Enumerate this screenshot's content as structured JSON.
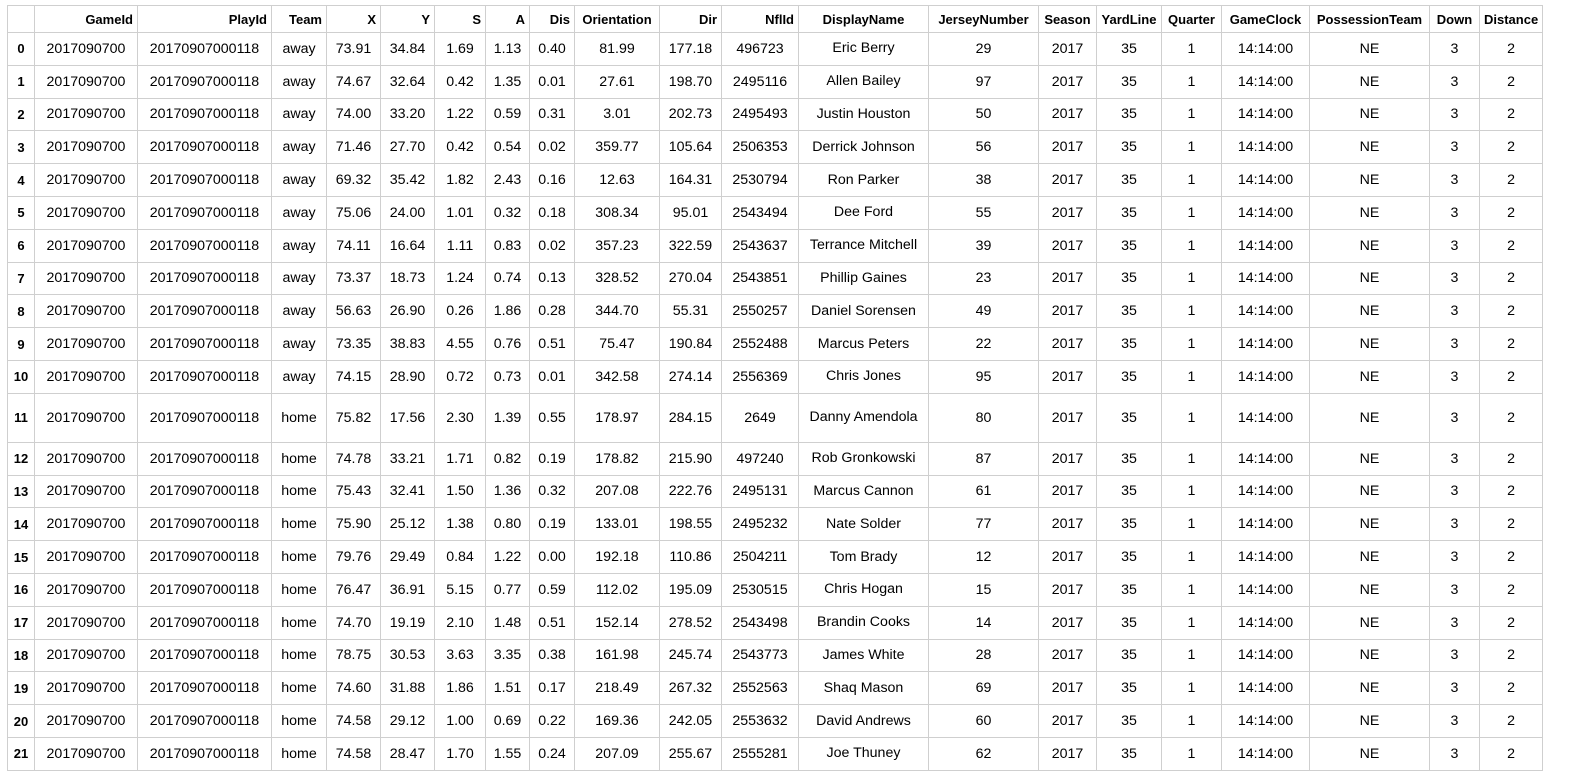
{
  "table": {
    "columns": [
      "",
      "GameId",
      "PlayId",
      "Team",
      "X",
      "Y",
      "S",
      "A",
      "Dis",
      "Orientation",
      "Dir",
      "NflId",
      "DisplayName",
      "JerseyNumber",
      "Season",
      "YardLine",
      "Quarter",
      "GameClock",
      "PossessionTeam",
      "Down",
      "Distance"
    ],
    "rows": [
      [
        "0",
        "2017090700",
        "20170907000118",
        "away",
        "73.91",
        "34.84",
        "1.69",
        "1.13",
        "0.40",
        "81.99",
        "177.18",
        "496723",
        "Eric Berry",
        "29",
        "2017",
        "35",
        "1",
        "14:14:00",
        "NE",
        "3",
        "2"
      ],
      [
        "1",
        "2017090700",
        "20170907000118",
        "away",
        "74.67",
        "32.64",
        "0.42",
        "1.35",
        "0.01",
        "27.61",
        "198.70",
        "2495116",
        "Allen Bailey",
        "97",
        "2017",
        "35",
        "1",
        "14:14:00",
        "NE",
        "3",
        "2"
      ],
      [
        "2",
        "2017090700",
        "20170907000118",
        "away",
        "74.00",
        "33.20",
        "1.22",
        "0.59",
        "0.31",
        "3.01",
        "202.73",
        "2495493",
        "Justin Houston",
        "50",
        "2017",
        "35",
        "1",
        "14:14:00",
        "NE",
        "3",
        "2"
      ],
      [
        "3",
        "2017090700",
        "20170907000118",
        "away",
        "71.46",
        "27.70",
        "0.42",
        "0.54",
        "0.02",
        "359.77",
        "105.64",
        "2506353",
        "Derrick Johnson",
        "56",
        "2017",
        "35",
        "1",
        "14:14:00",
        "NE",
        "3",
        "2"
      ],
      [
        "4",
        "2017090700",
        "20170907000118",
        "away",
        "69.32",
        "35.42",
        "1.82",
        "2.43",
        "0.16",
        "12.63",
        "164.31",
        "2530794",
        "Ron Parker",
        "38",
        "2017",
        "35",
        "1",
        "14:14:00",
        "NE",
        "3",
        "2"
      ],
      [
        "5",
        "2017090700",
        "20170907000118",
        "away",
        "75.06",
        "24.00",
        "1.01",
        "0.32",
        "0.18",
        "308.34",
        "95.01",
        "2543494",
        "Dee Ford",
        "55",
        "2017",
        "35",
        "1",
        "14:14:00",
        "NE",
        "3",
        "2"
      ],
      [
        "6",
        "2017090700",
        "20170907000118",
        "away",
        "74.11",
        "16.64",
        "1.11",
        "0.83",
        "0.02",
        "357.23",
        "322.59",
        "2543637",
        "Terrance Mitchell",
        "39",
        "2017",
        "35",
        "1",
        "14:14:00",
        "NE",
        "3",
        "2"
      ],
      [
        "7",
        "2017090700",
        "20170907000118",
        "away",
        "73.37",
        "18.73",
        "1.24",
        "0.74",
        "0.13",
        "328.52",
        "270.04",
        "2543851",
        "Phillip Gaines",
        "23",
        "2017",
        "35",
        "1",
        "14:14:00",
        "NE",
        "3",
        "2"
      ],
      [
        "8",
        "2017090700",
        "20170907000118",
        "away",
        "56.63",
        "26.90",
        "0.26",
        "1.86",
        "0.28",
        "344.70",
        "55.31",
        "2550257",
        "Daniel Sorensen",
        "49",
        "2017",
        "35",
        "1",
        "14:14:00",
        "NE",
        "3",
        "2"
      ],
      [
        "9",
        "2017090700",
        "20170907000118",
        "away",
        "73.35",
        "38.83",
        "4.55",
        "0.76",
        "0.51",
        "75.47",
        "190.84",
        "2552488",
        "Marcus Peters",
        "22",
        "2017",
        "35",
        "1",
        "14:14:00",
        "NE",
        "3",
        "2"
      ],
      [
        "10",
        "2017090700",
        "20170907000118",
        "away",
        "74.15",
        "28.90",
        "0.72",
        "0.73",
        "0.01",
        "342.58",
        "274.14",
        "2556369",
        "Chris Jones",
        "95",
        "2017",
        "35",
        "1",
        "14:14:00",
        "NE",
        "3",
        "2"
      ],
      [
        "11",
        "2017090700",
        "20170907000118",
        "home",
        "75.82",
        "17.56",
        "2.30",
        "1.39",
        "0.55",
        "178.97",
        "284.15",
        "2649",
        "Danny Amendola",
        "80",
        "2017",
        "35",
        "1",
        "14:14:00",
        "NE",
        "3",
        "2"
      ],
      [
        "12",
        "2017090700",
        "20170907000118",
        "home",
        "74.78",
        "33.21",
        "1.71",
        "0.82",
        "0.19",
        "178.82",
        "215.90",
        "497240",
        "Rob Gronkowski",
        "87",
        "2017",
        "35",
        "1",
        "14:14:00",
        "NE",
        "3",
        "2"
      ],
      [
        "13",
        "2017090700",
        "20170907000118",
        "home",
        "75.43",
        "32.41",
        "1.50",
        "1.36",
        "0.32",
        "207.08",
        "222.76",
        "2495131",
        "Marcus Cannon",
        "61",
        "2017",
        "35",
        "1",
        "14:14:00",
        "NE",
        "3",
        "2"
      ],
      [
        "14",
        "2017090700",
        "20170907000118",
        "home",
        "75.90",
        "25.12",
        "1.38",
        "0.80",
        "0.19",
        "133.01",
        "198.55",
        "2495232",
        "Nate Solder",
        "77",
        "2017",
        "35",
        "1",
        "14:14:00",
        "NE",
        "3",
        "2"
      ],
      [
        "15",
        "2017090700",
        "20170907000118",
        "home",
        "79.76",
        "29.49",
        "0.84",
        "1.22",
        "0.00",
        "192.18",
        "110.86",
        "2504211",
        "Tom Brady",
        "12",
        "2017",
        "35",
        "1",
        "14:14:00",
        "NE",
        "3",
        "2"
      ],
      [
        "16",
        "2017090700",
        "20170907000118",
        "home",
        "76.47",
        "36.91",
        "5.15",
        "0.77",
        "0.59",
        "112.02",
        "195.09",
        "2530515",
        "Chris Hogan",
        "15",
        "2017",
        "35",
        "1",
        "14:14:00",
        "NE",
        "3",
        "2"
      ],
      [
        "17",
        "2017090700",
        "20170907000118",
        "home",
        "74.70",
        "19.19",
        "2.10",
        "1.48",
        "0.51",
        "152.14",
        "278.52",
        "2543498",
        "Brandin Cooks",
        "14",
        "2017",
        "35",
        "1",
        "14:14:00",
        "NE",
        "3",
        "2"
      ],
      [
        "18",
        "2017090700",
        "20170907000118",
        "home",
        "78.75",
        "30.53",
        "3.63",
        "3.35",
        "0.38",
        "161.98",
        "245.74",
        "2543773",
        "James White",
        "28",
        "2017",
        "35",
        "1",
        "14:14:00",
        "NE",
        "3",
        "2"
      ],
      [
        "19",
        "2017090700",
        "20170907000118",
        "home",
        "74.60",
        "31.88",
        "1.86",
        "1.51",
        "0.17",
        "218.49",
        "267.32",
        "2552563",
        "Shaq Mason",
        "69",
        "2017",
        "35",
        "1",
        "14:14:00",
        "NE",
        "3",
        "2"
      ],
      [
        "20",
        "2017090700",
        "20170907000118",
        "home",
        "74.58",
        "29.12",
        "1.00",
        "0.69",
        "0.22",
        "169.36",
        "242.05",
        "2553632",
        "David Andrews",
        "60",
        "2017",
        "35",
        "1",
        "14:14:00",
        "NE",
        "3",
        "2"
      ],
      [
        "21",
        "2017090700",
        "20170907000118",
        "home",
        "74.58",
        "28.47",
        "1.70",
        "1.55",
        "0.24",
        "207.09",
        "255.67",
        "2555281",
        "Joe Thuney",
        "62",
        "2017",
        "35",
        "1",
        "14:14:00",
        "NE",
        "3",
        "2"
      ]
    ]
  }
}
